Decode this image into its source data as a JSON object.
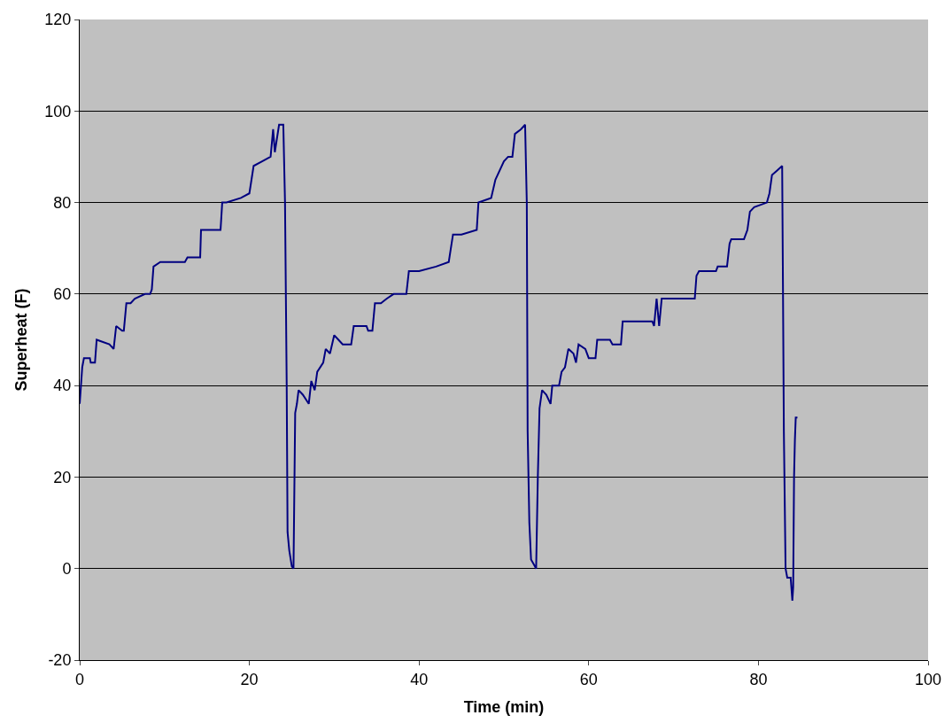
{
  "chart_data": {
    "type": "line",
    "xlabel": "Time (min)",
    "ylabel": "Superheat (F)",
    "x": [
      0,
      0.3,
      0.5,
      1.2,
      1.3,
      1.8,
      2,
      3.5,
      4,
      4.3,
      5,
      5.2,
      5.5,
      6,
      6.5,
      7.7,
      8.3,
      8.5,
      8.7,
      9.5,
      12.4,
      12.7,
      14.2,
      14.3,
      15.5,
      16.6,
      16.8,
      17.3,
      19,
      20,
      20.5,
      21.5,
      22.5,
      22.8,
      23,
      23.5,
      24,
      24.2,
      24.4,
      24.5,
      24.7,
      25,
      25.2,
      25.4,
      25.6,
      25.8,
      26.3,
      27,
      27.3,
      27.7,
      28,
      28.7,
      29,
      29.5,
      30,
      30.5,
      31,
      32,
      32.3,
      33.8,
      34,
      34.5,
      34.8,
      35.5,
      36.2,
      37,
      38.5,
      38.8,
      40,
      42,
      43.5,
      44,
      45,
      46.8,
      47,
      48.5,
      49,
      50,
      50.5,
      51,
      51.3,
      52,
      52.5,
      52.7,
      52.8,
      53,
      53.2,
      53.5,
      53.8,
      54,
      54.2,
      54.5,
      55,
      55.5,
      55.7,
      56.5,
      56.8,
      57.2,
      57.6,
      58.2,
      58.5,
      58.8,
      59.6,
      60,
      60.8,
      61,
      62.5,
      62.8,
      63.8,
      64,
      67.5,
      67.7,
      68,
      68.3,
      68.6,
      70,
      72.5,
      72.7,
      73,
      75,
      75.2,
      76.3,
      76.6,
      76.8,
      78.3,
      78.7,
      79,
      79.5,
      81,
      81.3,
      81.6,
      82.2,
      82.8,
      82.9,
      83,
      83.2,
      83.4,
      83.8,
      84,
      84.1,
      84.2,
      84.3,
      84.4,
      84.6
    ],
    "series": [
      {
        "color": "#000080",
        "values": [
          36,
          44,
          46,
          46,
          45,
          45,
          50,
          49,
          48,
          53,
          52,
          52,
          58,
          58,
          59,
          60,
          60,
          61,
          66,
          67,
          67,
          68,
          68,
          74,
          74,
          74,
          80,
          80,
          81,
          82,
          88,
          89,
          90,
          96,
          91,
          97,
          97,
          80,
          40,
          8,
          4,
          0.5,
          0,
          34,
          36,
          39,
          38,
          36,
          41,
          39,
          43,
          45,
          48,
          47,
          51,
          50,
          49,
          49,
          53,
          53,
          52,
          52,
          58,
          58,
          59,
          60,
          60,
          65,
          65,
          66,
          67,
          73,
          73,
          74,
          80,
          81,
          85,
          89,
          90,
          90,
          95,
          96,
          97,
          80,
          30,
          10,
          2,
          1,
          0,
          20,
          35,
          39,
          38,
          36,
          40,
          40,
          43,
          44,
          48,
          47,
          45,
          49,
          48,
          46,
          46,
          50,
          50,
          49,
          49,
          54,
          54,
          53,
          59,
          53,
          59,
          59,
          59,
          64,
          65,
          65,
          66,
          66,
          71,
          72,
          72,
          74,
          78,
          79,
          80,
          82,
          86,
          87,
          88,
          60,
          30,
          0,
          -2,
          -2,
          -7,
          -4,
          20,
          28,
          33,
          33
        ]
      }
    ],
    "xlim": [
      0,
      100
    ],
    "xticks": [
      0,
      20,
      40,
      60,
      80,
      100
    ],
    "ylim": [
      -20,
      120
    ],
    "yticks": [
      -20,
      0,
      20,
      40,
      60,
      80,
      100,
      120
    ],
    "grid": "y",
    "marker": "none",
    "line_style": "solid"
  }
}
